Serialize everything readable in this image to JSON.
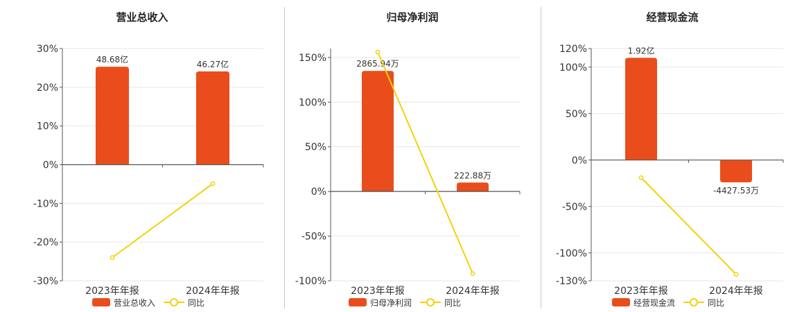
{
  "colors": {
    "bar": "#e94d1c",
    "line": "#f2d20a",
    "grid": "#e6e6e6",
    "axis": "#555555"
  },
  "chart_data": [
    {
      "type": "bar",
      "title": "营业总收入",
      "categories": [
        "2023年年报",
        "2024年年报"
      ],
      "series": [
        {
          "name": "营业总收入",
          "type": "bar",
          "values": [
            25.3,
            24.1
          ],
          "labels": [
            "48.68亿",
            "46.27亿"
          ]
        },
        {
          "name": "同比",
          "type": "line",
          "values": [
            -24.0,
            -4.9
          ]
        }
      ],
      "yticks": [
        "30%",
        "20%",
        "10%",
        "0%",
        "-10%",
        "-20%",
        "-30%"
      ],
      "ylim": [
        -30,
        30
      ],
      "grid": true,
      "legend": "bottom"
    },
    {
      "type": "bar",
      "title": "归母净利润",
      "categories": [
        "2023年年报",
        "2024年年报"
      ],
      "series": [
        {
          "name": "归母净利润",
          "type": "bar",
          "values": [
            135,
            10
          ],
          "labels": [
            "2865.94万",
            "222.88万"
          ]
        },
        {
          "name": "同比",
          "type": "line",
          "values": [
            156,
            -92
          ]
        }
      ],
      "yticks": [
        "150%",
        "100%",
        "50%",
        "0%",
        "-50%",
        "-100%"
      ],
      "ylim": [
        -100,
        160
      ],
      "grid": true,
      "legend": "bottom"
    },
    {
      "type": "bar",
      "title": "经营现金流",
      "categories": [
        "2023年年报",
        "2024年年报"
      ],
      "series": [
        {
          "name": "经营现金流",
          "type": "bar",
          "values": [
            110,
            -24
          ],
          "labels": [
            "1.92亿",
            "-4427.53万"
          ]
        },
        {
          "name": "同比",
          "type": "line",
          "values": [
            -19,
            -123
          ]
        }
      ],
      "yticks": [
        "120%",
        "100%",
        "50%",
        "0%",
        "-50%",
        "-100%",
        "-130%"
      ],
      "ytick_values": [
        120,
        100,
        50,
        0,
        -50,
        -100,
        -130
      ],
      "ylim": [
        -130,
        120
      ],
      "grid": true,
      "legend": "bottom"
    }
  ]
}
